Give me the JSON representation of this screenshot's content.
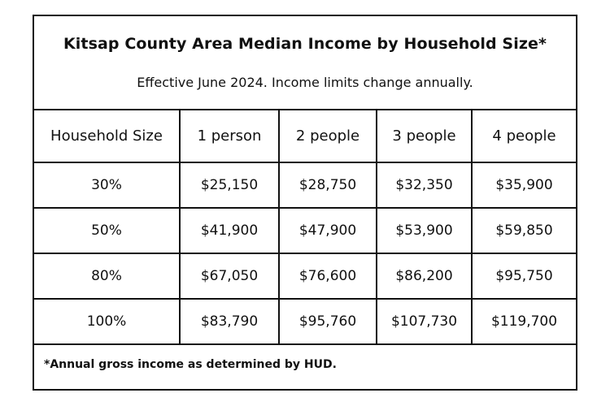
{
  "title": "Kitsap County Area Median Income by Household Size*",
  "subtitle": "Effective June 2024. Income limits change annually.",
  "table": {
    "headers": [
      "Household Size",
      "1 person",
      "2 people",
      "3 people",
      "4 people"
    ],
    "rows": [
      [
        "30%",
        "$25,150",
        "$28,750",
        "$32,350",
        "$35,900"
      ],
      [
        "50%",
        "$41,900",
        "$47,900",
        "$53,900",
        "$59,850"
      ],
      [
        "80%",
        "$67,050",
        "$76,600",
        "$86,200",
        "$95,750"
      ],
      [
        "100%",
        "$83,790",
        "$95,760",
        "$107,730",
        "$119,700"
      ]
    ]
  },
  "footnote": "*Annual gross income as determined by HUD."
}
